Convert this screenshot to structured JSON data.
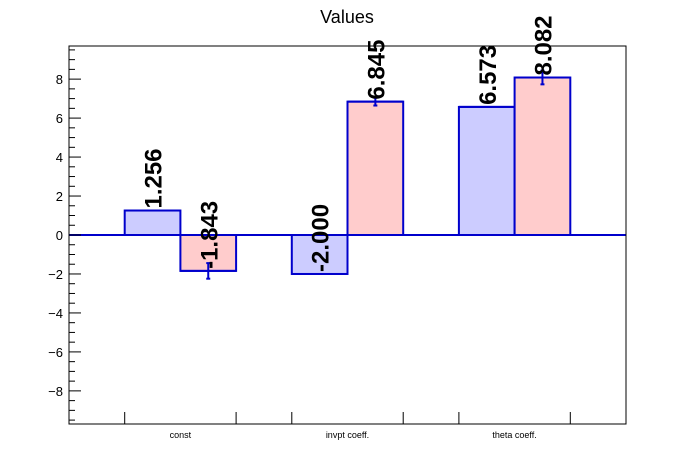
{
  "chart_data": {
    "type": "bar",
    "title": "Values",
    "categories": [
      "const",
      "invpt coeff.",
      "theta coeff."
    ],
    "series": [
      {
        "values": [
          1.256,
          -2.0,
          6.573
        ],
        "errors": [
          0,
          0,
          0
        ],
        "labels": [
          "1.256",
          "-2.000",
          "6.573"
        ],
        "fill": "#ccccff"
      },
      {
        "values": [
          -1.843,
          6.845,
          8.082
        ],
        "errors": [
          0.4,
          0.2,
          0.35
        ],
        "labels": [
          "-1.843",
          "6.845",
          "8.082"
        ],
        "fill": "#ffcccc"
      }
    ],
    "ylim": [
      -9.7,
      9.7
    ],
    "yticks": [
      -8,
      -6,
      -4,
      -2,
      0,
      2,
      4,
      6,
      8
    ],
    "ytick_labels": [
      "−8",
      "−6",
      "−4",
      "−2",
      "0",
      "2",
      "4",
      "6",
      "8"
    ],
    "xlabel": "",
    "ylabel": "",
    "grid": false,
    "colors": {
      "edge": "#0000cc",
      "axis": "#000000"
    }
  }
}
